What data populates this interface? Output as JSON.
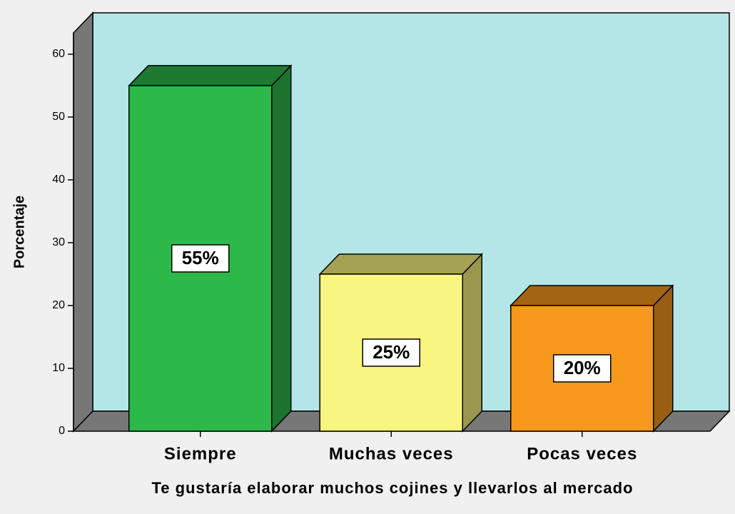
{
  "chart_data": {
    "type": "bar3d",
    "categories": [
      "Siempre",
      "Muchas veces",
      "Pocas veces"
    ],
    "values": [
      55,
      25,
      20
    ],
    "value_labels": [
      "55%",
      "25%",
      "20%"
    ],
    "colors": [
      "#2db84a",
      "#f8f580",
      "#f7981d"
    ],
    "y_label": "Porcentaje",
    "x_label": "Te gustaría elaborar muchos cojines y llevarlos al mercado",
    "ylim": [
      0,
      63.4
    ],
    "yticks": [
      0,
      10,
      20,
      30,
      40,
      50,
      60
    ]
  }
}
